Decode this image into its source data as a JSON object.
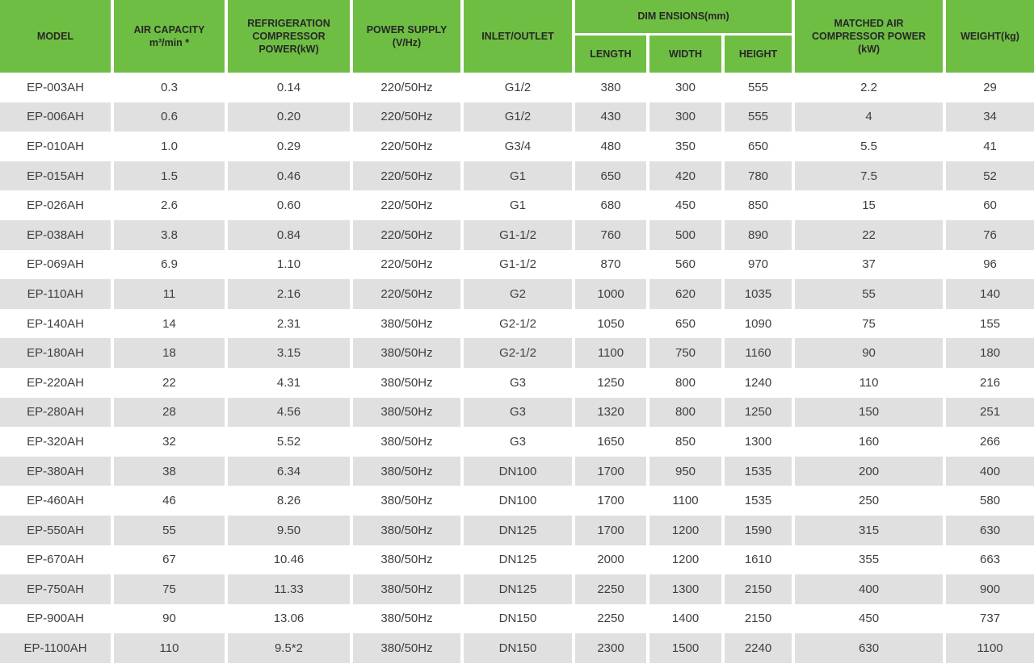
{
  "colors": {
    "header_green": "#6fbe44",
    "row_alt": "#e0e0e0",
    "body_text": "#3f3f3f",
    "header_text": "#272727",
    "gutter": "#ffffff"
  },
  "table": {
    "header": {
      "model": "MODEL",
      "air_capacity": "AIR CAPACITY\nm³/min *",
      "refrigeration_compressor_power": "REFRIGERATION\nCOMPRESSOR\nPOWER(kW)",
      "power_supply": "POWER SUPPLY\n(V/Hz)",
      "inlet_outlet": "INLET/OUTLET",
      "dimensions_group": "DIM ENSIONS(mm)",
      "length": "LENGTH",
      "width": "WIDTH",
      "height": "HEIGHT",
      "matched_air_compressor_power": "MATCHED AIR\nCOMPRESSOR POWER\n(kW)",
      "weight": "WEIGHT(kg)"
    },
    "rows": [
      [
        "EP-003AH",
        "0.3",
        "0.14",
        "220/50Hz",
        "G1/2",
        "380",
        "300",
        "555",
        "2.2",
        "29"
      ],
      [
        "EP-006AH",
        "0.6",
        "0.20",
        "220/50Hz",
        "G1/2",
        "430",
        "300",
        "555",
        "4",
        "34"
      ],
      [
        "EP-010AH",
        "1.0",
        "0.29",
        "220/50Hz",
        "G3/4",
        "480",
        "350",
        "650",
        "5.5",
        "41"
      ],
      [
        "EP-015AH",
        "1.5",
        "0.46",
        "220/50Hz",
        "G1",
        "650",
        "420",
        "780",
        "7.5",
        "52"
      ],
      [
        "EP-026AH",
        "2.6",
        "0.60",
        "220/50Hz",
        "G1",
        "680",
        "450",
        "850",
        "15",
        "60"
      ],
      [
        "EP-038AH",
        "3.8",
        "0.84",
        "220/50Hz",
        "G1-1/2",
        "760",
        "500",
        "890",
        "22",
        "76"
      ],
      [
        "EP-069AH",
        "6.9",
        "1.10",
        "220/50Hz",
        "G1-1/2",
        "870",
        "560",
        "970",
        "37",
        "96"
      ],
      [
        "EP-110AH",
        "11",
        "2.16",
        "220/50Hz",
        "G2",
        "1000",
        "620",
        "1035",
        "55",
        "140"
      ],
      [
        "EP-140AH",
        "14",
        "2.31",
        "380/50Hz",
        "G2-1/2",
        "1050",
        "650",
        "1090",
        "75",
        "155"
      ],
      [
        "EP-180AH",
        "18",
        "3.15",
        "380/50Hz",
        "G2-1/2",
        "1100",
        "750",
        "1160",
        "90",
        "180"
      ],
      [
        "EP-220AH",
        "22",
        "4.31",
        "380/50Hz",
        "G3",
        "1250",
        "800",
        "1240",
        "110",
        "216"
      ],
      [
        "EP-280AH",
        "28",
        "4.56",
        "380/50Hz",
        "G3",
        "1320",
        "800",
        "1250",
        "150",
        "251"
      ],
      [
        "EP-320AH",
        "32",
        "5.52",
        "380/50Hz",
        "G3",
        "1650",
        "850",
        "1300",
        "160",
        "266"
      ],
      [
        "EP-380AH",
        "38",
        "6.34",
        "380/50Hz",
        "DN100",
        "1700",
        "950",
        "1535",
        "200",
        "400"
      ],
      [
        "EP-460AH",
        "46",
        "8.26",
        "380/50Hz",
        "DN100",
        "1700",
        "1100",
        "1535",
        "250",
        "580"
      ],
      [
        "EP-550AH",
        "55",
        "9.50",
        "380/50Hz",
        "DN125",
        "1700",
        "1200",
        "1590",
        "315",
        "630"
      ],
      [
        "EP-670AH",
        "67",
        "10.46",
        "380/50Hz",
        "DN125",
        "2000",
        "1200",
        "1610",
        "355",
        "663"
      ],
      [
        "EP-750AH",
        "75",
        "11.33",
        "380/50Hz",
        "DN125",
        "2250",
        "1300",
        "2150",
        "400",
        "900"
      ],
      [
        "EP-900AH",
        "90",
        "13.06",
        "380/50Hz",
        "DN150",
        "2250",
        "1400",
        "2150",
        "450",
        "737"
      ],
      [
        "EP-1100AH",
        "110",
        "9.5*2",
        "380/50Hz",
        "DN150",
        "2300",
        "1500",
        "2240",
        "630",
        "1100"
      ]
    ],
    "column_keys": [
      "model",
      "air_capacity",
      "refrigeration_power",
      "power_supply",
      "inlet_outlet",
      "length",
      "width",
      "height",
      "matched_power",
      "weight"
    ]
  }
}
